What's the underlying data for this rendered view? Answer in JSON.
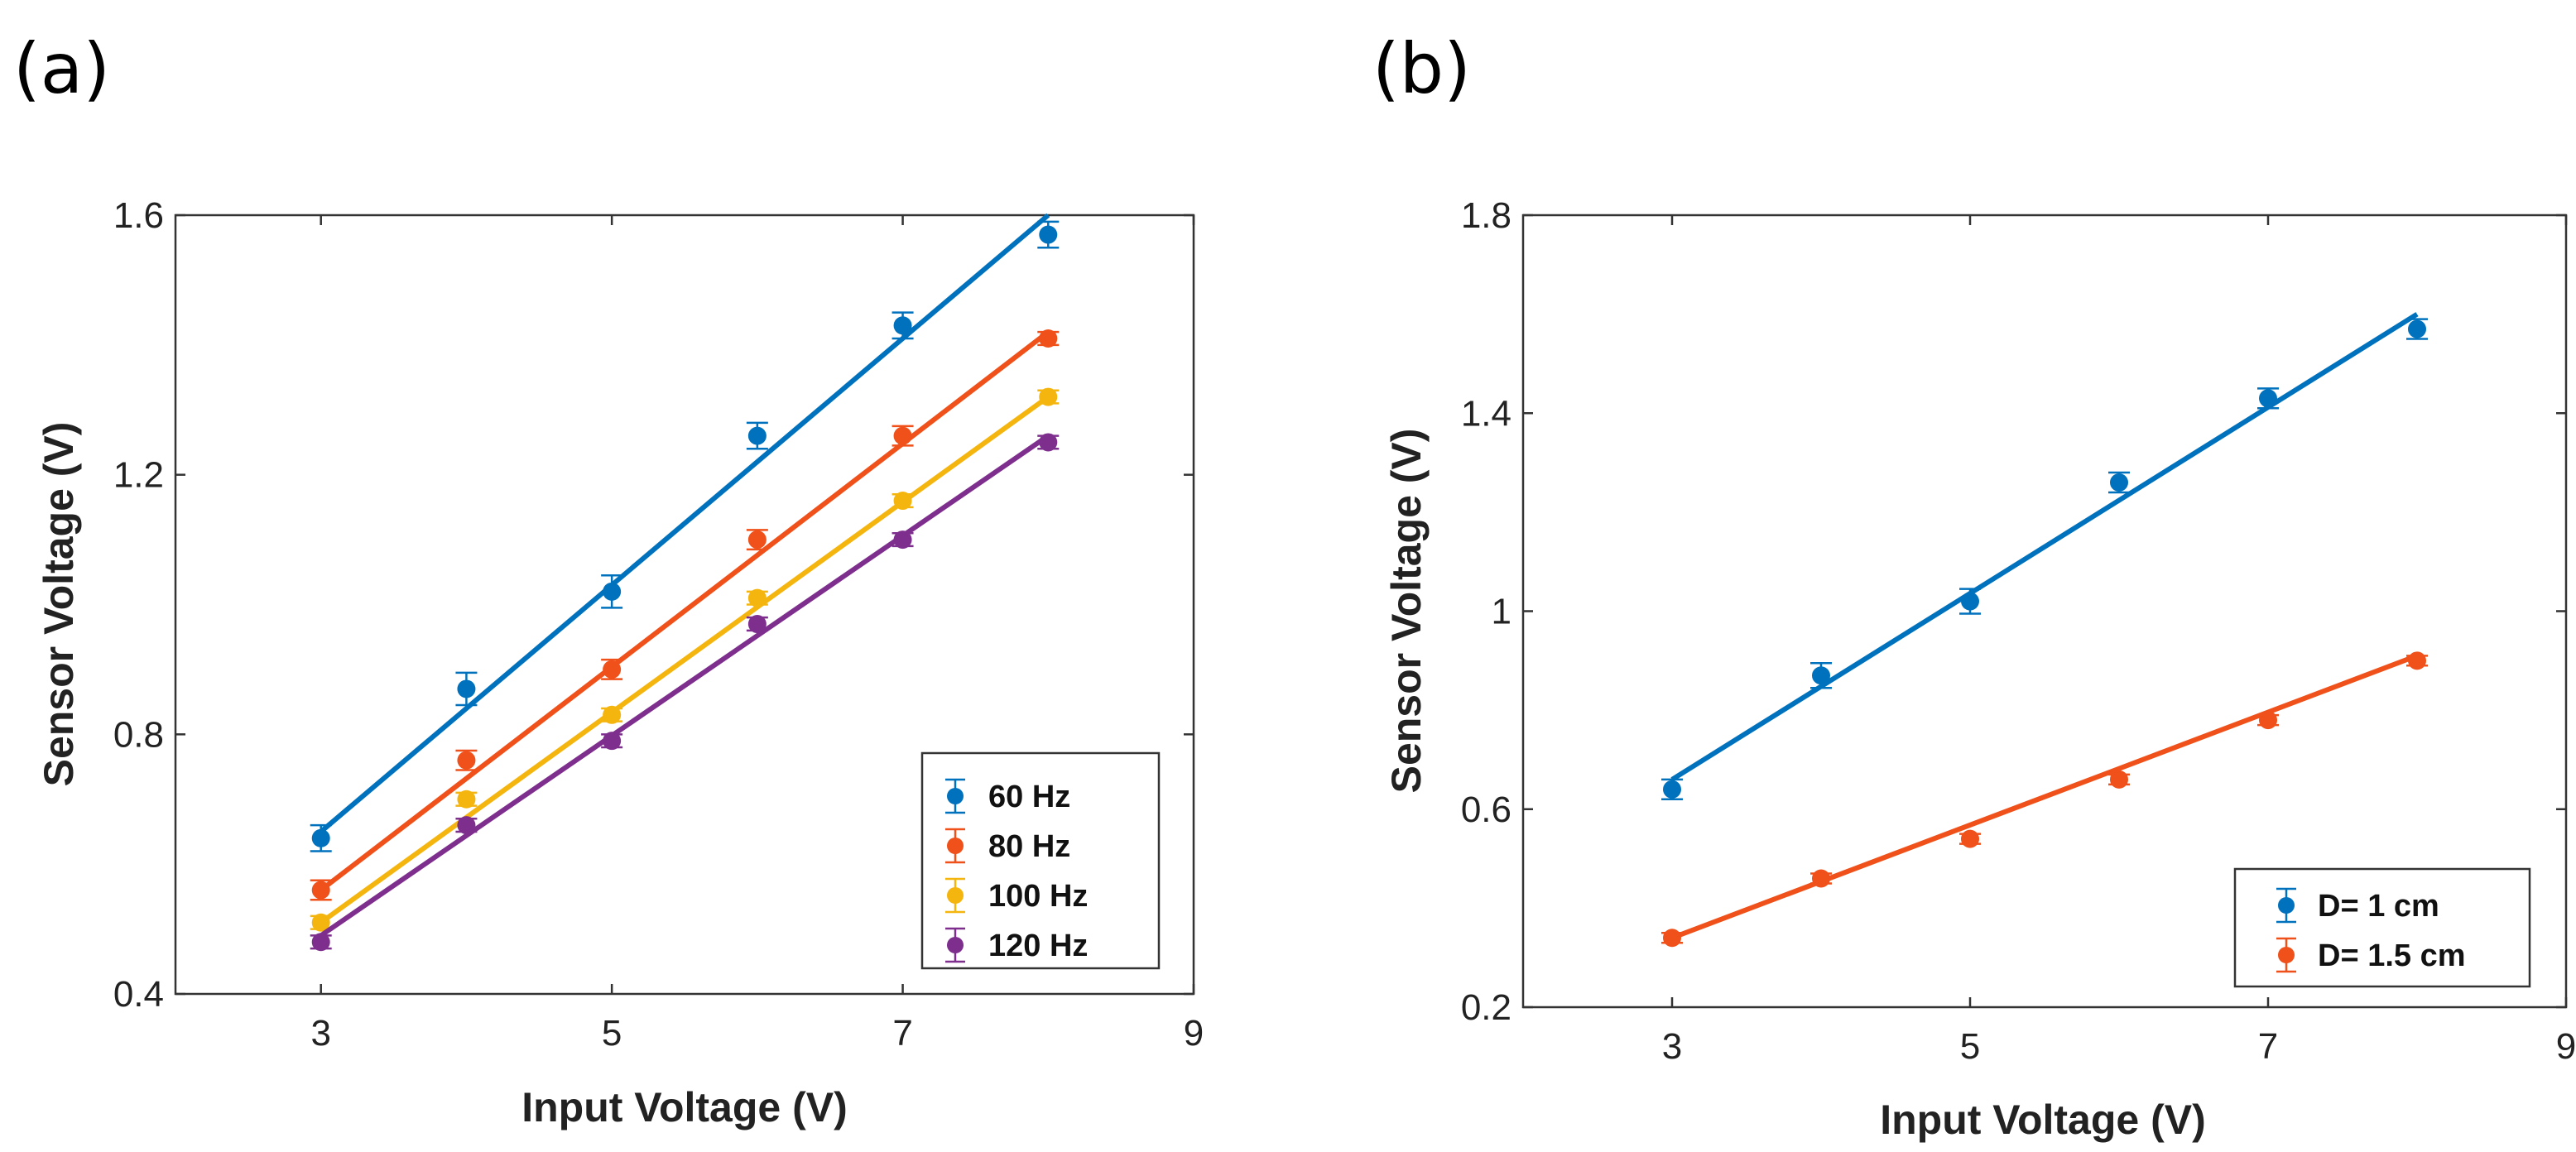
{
  "chart_data": [
    {
      "type": "scatter",
      "panel_label": "(a)",
      "xlabel": "Input Voltage (V)",
      "ylabel": "Sensor Voltage (V)",
      "xlim": [
        2,
        9
      ],
      "ylim": [
        0.4,
        1.6
      ],
      "xticks": [
        "3",
        "5",
        "7",
        "9"
      ],
      "yticks": [
        "0.4",
        "0.8",
        "1.2",
        "1.6"
      ],
      "legend_position": "bottom-right",
      "x": [
        3,
        4,
        5,
        6,
        7,
        8
      ],
      "series": [
        {
          "name": "60 Hz",
          "color": "#0072BD",
          "values": [
            0.64,
            0.87,
            1.02,
            1.26,
            1.43,
            1.57
          ],
          "errors": [
            0.02,
            0.025,
            0.025,
            0.02,
            0.02,
            0.02
          ],
          "fit": [
            0.65,
            1.6
          ]
        },
        {
          "name": "80 Hz",
          "color": "#F0511A",
          "values": [
            0.56,
            0.76,
            0.9,
            1.1,
            1.26,
            1.41
          ],
          "errors": [
            0.015,
            0.015,
            0.015,
            0.015,
            0.015,
            0.01
          ],
          "fit": [
            0.56,
            1.42
          ]
        },
        {
          "name": "100 Hz",
          "color": "#F5B50F",
          "values": [
            0.51,
            0.7,
            0.83,
            1.01,
            1.16,
            1.32
          ],
          "errors": [
            0.01,
            0.01,
            0.01,
            0.01,
            0.01,
            0.01
          ],
          "fit": [
            0.51,
            1.32
          ]
        },
        {
          "name": "120 Hz",
          "color": "#7E2F8E",
          "values": [
            0.48,
            0.66,
            0.79,
            0.97,
            1.1,
            1.25
          ],
          "errors": [
            0.01,
            0.01,
            0.01,
            0.01,
            0.01,
            0.01
          ],
          "fit": [
            0.49,
            1.26
          ]
        }
      ]
    },
    {
      "type": "scatter",
      "panel_label": "(b)",
      "xlabel": "Input Voltage (V)",
      "ylabel": "Sensor Voltage (V)",
      "xlim": [
        2,
        9
      ],
      "ylim": [
        0.2,
        1.8
      ],
      "xticks": [
        "3",
        "5",
        "7",
        "9"
      ],
      "yticks": [
        "0.2",
        "0.6",
        "1",
        "1.4",
        "1.8"
      ],
      "legend_position": "bottom-right",
      "x": [
        3,
        4,
        5,
        6,
        7,
        8
      ],
      "series": [
        {
          "name": "D= 1 cm",
          "color": "#0072BD",
          "values": [
            0.64,
            0.87,
            1.02,
            1.26,
            1.43,
            1.57
          ],
          "errors": [
            0.02,
            0.025,
            0.025,
            0.02,
            0.02,
            0.02
          ],
          "fit": [
            0.66,
            1.6
          ]
        },
        {
          "name": "D= 1.5 cm",
          "color": "#F0511A",
          "values": [
            0.34,
            0.46,
            0.54,
            0.66,
            0.78,
            0.9
          ],
          "errors": [
            0.01,
            0.01,
            0.01,
            0.01,
            0.01,
            0.01
          ],
          "fit": [
            0.34,
            0.91
          ]
        }
      ]
    }
  ]
}
